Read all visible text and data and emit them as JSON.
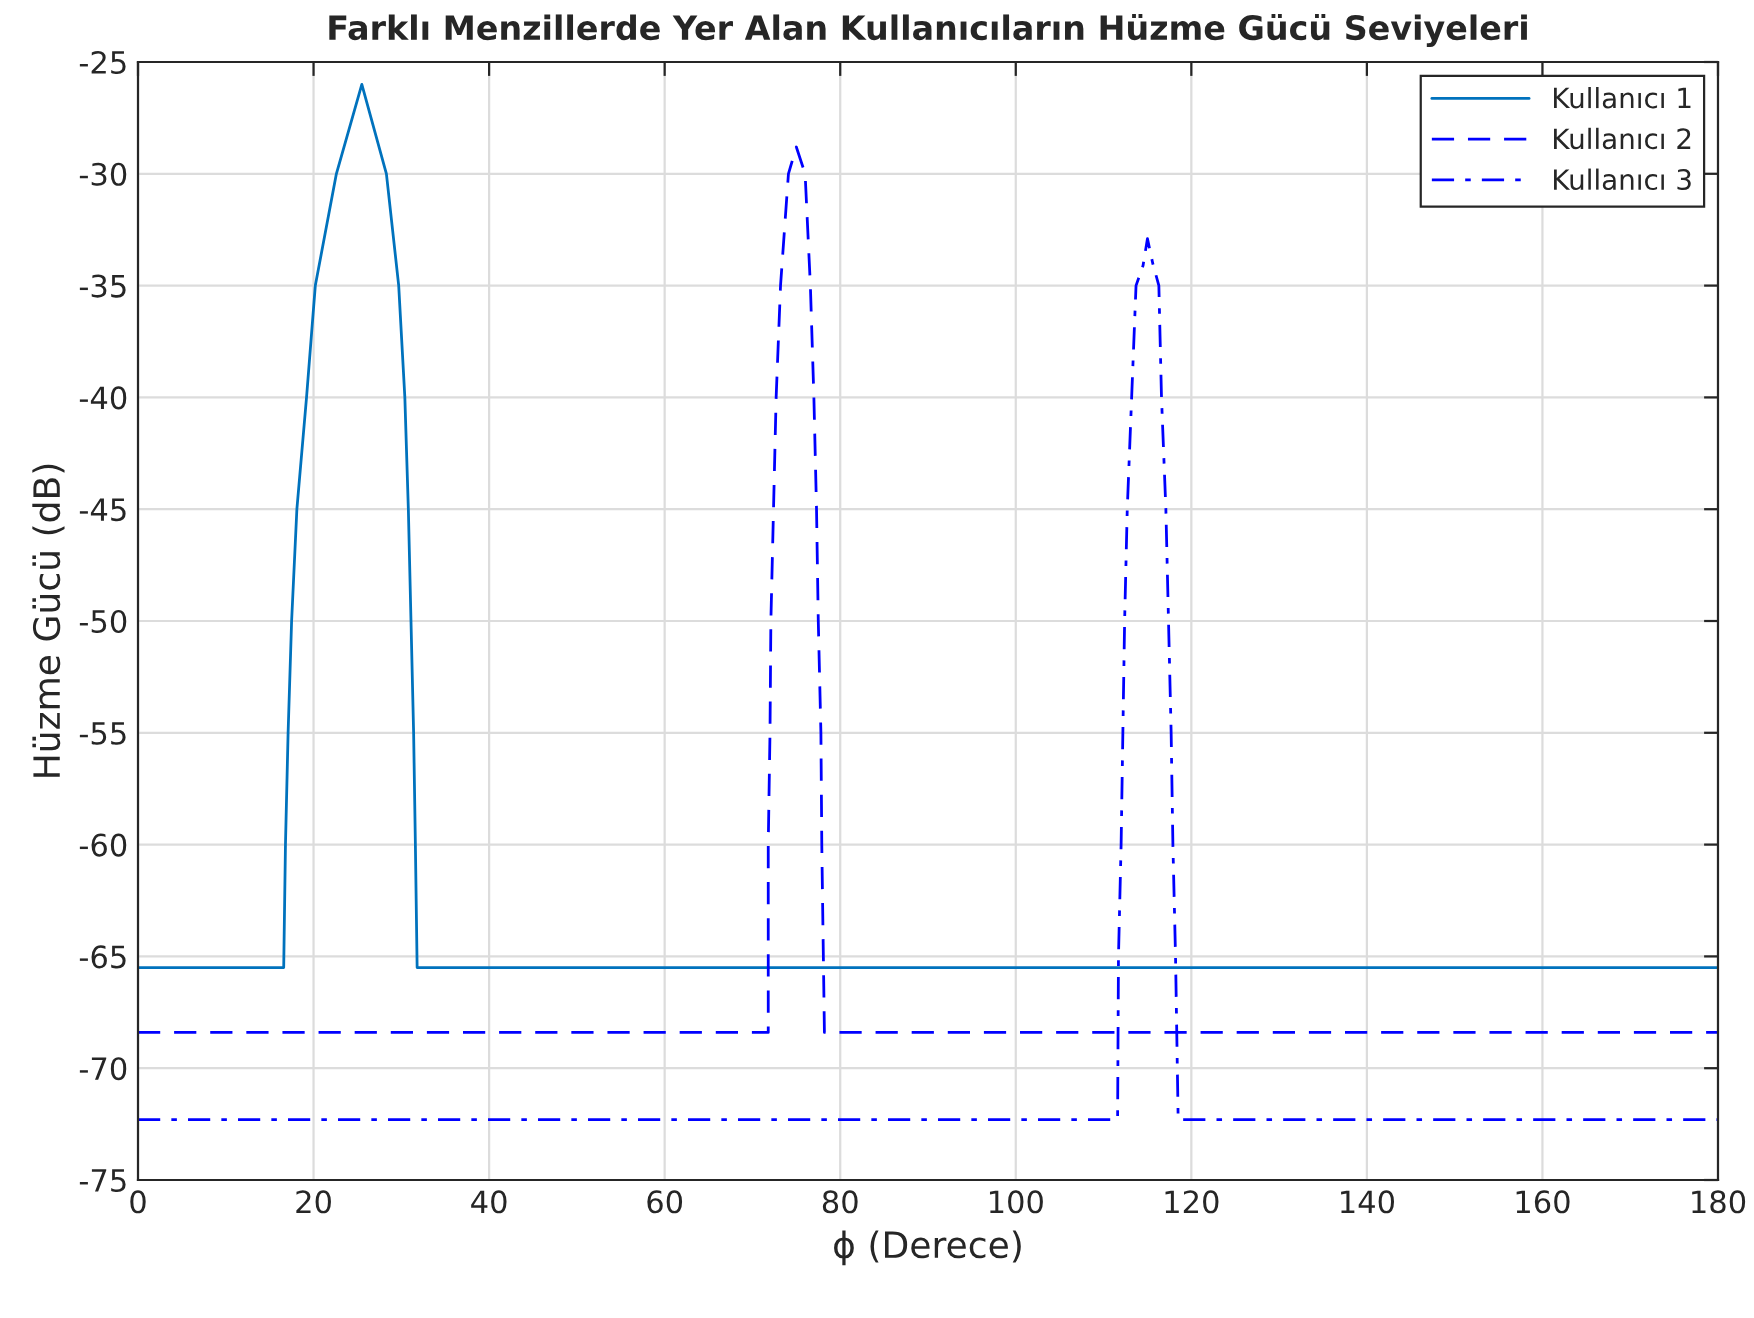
{
  "chart_data": {
    "type": "line",
    "title": "Farklı Menzillerde Yer Alan Kullanıcıların Hüzme Gücü Seviyeleri",
    "xlabel": "ϕ (Derece)",
    "ylabel": "Hüzme Gücü (dB)",
    "xlim": [
      0,
      180
    ],
    "xticks": [
      0,
      20,
      40,
      60,
      80,
      100,
      120,
      140,
      160,
      180
    ],
    "ylim": [
      -75,
      -25
    ],
    "yticks": [
      -75,
      -70,
      -65,
      -60,
      -55,
      -50,
      -45,
      -40,
      -35,
      -30,
      -25
    ],
    "grid": true,
    "legend": "top right",
    "marker": "none",
    "series": [
      {
        "name": "Kullanıcı 1",
        "color": "#0072bd",
        "line_style": "solid",
        "x": [
          0,
          16.6,
          16.8,
          17.1,
          17.5,
          18.1,
          19.2,
          20.2,
          22.6,
          25.5,
          28.3,
          29.7,
          30.4,
          30.8,
          31.1,
          31.4,
          31.6,
          31.8,
          180
        ],
        "values": [
          -65.5,
          -65.5,
          -60,
          -55,
          -50,
          -45,
          -40,
          -35,
          -30,
          -26,
          -30,
          -35,
          -40,
          -45,
          -50,
          -55,
          -60,
          -65.5,
          -65.5
        ]
      },
      {
        "name": "Kullanıcı 2",
        "color": "#0000ff",
        "line_style": "dashed",
        "x": [
          0,
          71.8,
          71.8,
          72.0,
          72.1,
          72.4,
          72.7,
          73.2,
          74.1,
          75.0,
          76.0,
          76.6,
          77.0,
          77.3,
          77.5,
          77.8,
          77.9,
          78.2,
          180
        ],
        "values": [
          -68.4,
          -68.4,
          -60,
          -55,
          -50,
          -45,
          -40,
          -35,
          -30,
          -28.8,
          -30,
          -35,
          -40,
          -45,
          -50,
          -55,
          -60,
          -68.4,
          -68.4
        ]
      },
      {
        "name": "Kullanıcı 3",
        "color": "#0000ff",
        "line_style": "dashdot",
        "x": [
          0,
          111.6,
          111.7,
          112.0,
          112.2,
          112.4,
          112.7,
          113.2,
          113.7,
          114.5,
          115,
          115.6,
          116.3,
          116.6,
          117.1,
          117.4,
          117.7,
          117.9,
          118.2,
          118.5,
          180
        ],
        "values": [
          -72.3,
          -72.3,
          -65,
          -60,
          -55,
          -50,
          -45,
          -40,
          -35,
          -34.1,
          -32.9,
          -34,
          -35,
          -40,
          -45,
          -50,
          -55,
          -60,
          -65,
          -72.3,
          -72.3
        ]
      }
    ]
  }
}
